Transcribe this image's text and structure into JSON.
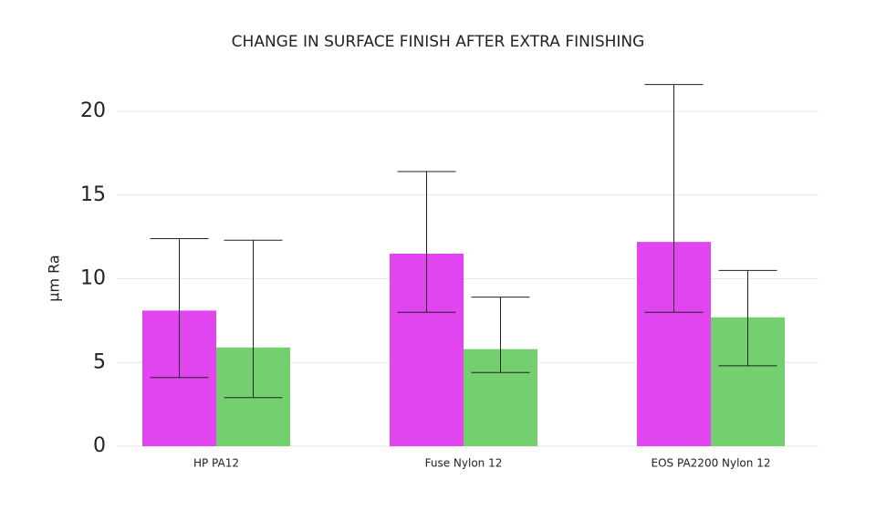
{
  "chart_data": {
    "type": "bar",
    "title": "CHANGE IN SURFACE FINISH AFTER EXTRA FINISHING",
    "y_label": "μm Ra",
    "categories": [
      "HP PA12",
      "Fuse Nylon 12",
      "EOS PA2200 Nylon 12"
    ],
    "series": [
      {
        "color": "#e045f0",
        "values": [
          8.1,
          11.5,
          12.2
        ],
        "error_high": [
          4.3,
          4.9,
          9.4
        ],
        "error_low": [
          4.0,
          3.5,
          4.2
        ]
      },
      {
        "color": "#74cf6e",
        "values": [
          5.9,
          5.8,
          7.7
        ],
        "error_high": [
          6.4,
          3.1,
          2.8
        ],
        "error_low": [
          3.0,
          1.4,
          2.9
        ]
      }
    ],
    "ylim": [
      0,
      22
    ],
    "yticks": [
      0,
      5,
      10,
      15,
      20
    ],
    "grid": true
  }
}
